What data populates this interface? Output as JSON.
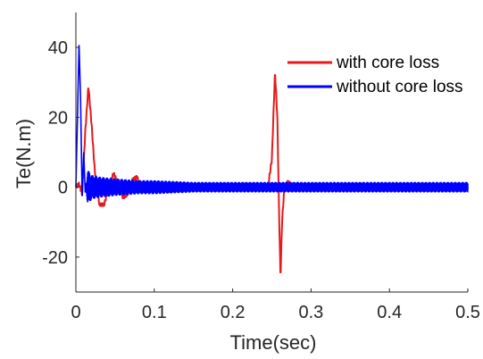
{
  "chart_data": {
    "type": "line",
    "title": "",
    "xlabel": "Time(sec)",
    "ylabel": "Te(N.m)",
    "xlim": [
      0,
      0.5
    ],
    "ylim": [
      -30,
      50
    ],
    "xticks": [
      0,
      0.1,
      0.2,
      0.3,
      0.4,
      0.5
    ],
    "xtick_labels": [
      "0",
      "0.1",
      "0.2",
      "0.3",
      "0.4",
      "0.5"
    ],
    "yticks": [
      -20,
      0,
      20,
      40
    ],
    "ytick_labels": [
      "-20",
      "0",
      "20",
      "40"
    ],
    "grid": false,
    "legend_position": "top-right",
    "series": [
      {
        "name": "with core loss",
        "color": "#e41a1c",
        "x": [
          0,
          0.004,
          0.008,
          0.012,
          0.016,
          0.02,
          0.024,
          0.03,
          0.036,
          0.042,
          0.048,
          0.054,
          0.06,
          0.066,
          0.072,
          0.078,
          0.084,
          0.09,
          0.1,
          0.12,
          0.15,
          0.2,
          0.245,
          0.25,
          0.254,
          0.257,
          0.259,
          0.261,
          0.263,
          0.266,
          0.27,
          0.28,
          0.3,
          0.35,
          0.4,
          0.45,
          0.5
        ],
        "values": [
          0,
          1,
          -2,
          16,
          29,
          18,
          5,
          -5,
          -5,
          0,
          4,
          1,
          -3,
          -2,
          2,
          3,
          -1,
          -1,
          1,
          -1,
          0.5,
          0,
          0,
          8,
          33,
          20,
          -5,
          -26,
          -10,
          0,
          1.5,
          0,
          0,
          0,
          0,
          0,
          0
        ]
      },
      {
        "name": "without core loss",
        "color": "#0000ff",
        "x": [
          0,
          0.002,
          0.004,
          0.006,
          0.008,
          0.01,
          0.012,
          0.015,
          0.02,
          0.03,
          0.05,
          0.08,
          0.1,
          0.15,
          0.2,
          0.25,
          0.3,
          0.35,
          0.4,
          0.45,
          0.5
        ],
        "values": [
          0,
          20,
          41,
          25,
          -3,
          10,
          -2,
          5,
          3.5,
          3,
          2.5,
          2,
          2,
          1.5,
          1.5,
          1.5,
          1.5,
          1.5,
          1.5,
          1.5,
          1.5
        ],
        "note_envelope": "high-frequency oscillation about 0 with decaying amplitude (envelope half-width)"
      }
    ]
  }
}
